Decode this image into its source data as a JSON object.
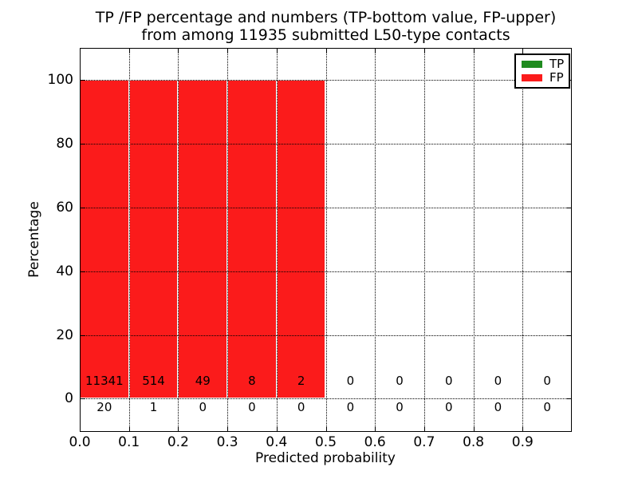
{
  "figure": {
    "title_line1": "TP /FP percentage and numbers (TP-bottom value, FP-upper)",
    "title_line2": "from among 11935 submitted L50-type contacts",
    "xlabel": "Predicted probability",
    "ylabel": "Percentage",
    "background": "#ffffff"
  },
  "legend": {
    "position": "upper right",
    "items": [
      {
        "label": "TP",
        "color": "#1f8b1f"
      },
      {
        "label": "FP",
        "color": "#fb1b1b"
      }
    ]
  },
  "chart_data": {
    "type": "bar",
    "stacked": true,
    "title": "TP /FP percentage and numbers (TP-bottom value, FP-upper) from among 11935 submitted L50-type contacts",
    "xlabel": "Predicted probability",
    "ylabel": "Percentage",
    "xlim": [
      0.0,
      1.0
    ],
    "ylim": [
      -10,
      110
    ],
    "grid": "dotted",
    "bin_width": 0.1,
    "x_bins": [
      0.0,
      0.1,
      0.2,
      0.3,
      0.4,
      0.5,
      0.6,
      0.7,
      0.8,
      0.9
    ],
    "xtick_labels": [
      "0.0",
      "0.1",
      "0.2",
      "0.3",
      "0.4",
      "0.5",
      "0.6",
      "0.7",
      "0.8",
      "0.9"
    ],
    "ytick_values": [
      0,
      20,
      40,
      60,
      80,
      100
    ],
    "ytick_labels": [
      "0",
      "20",
      "40",
      "60",
      "80",
      "100"
    ],
    "series": [
      {
        "name": "TP",
        "color": "#1f8b1f",
        "count_row": "bottom",
        "percent": [
          0,
          0,
          0,
          0,
          0,
          0,
          0,
          0,
          0,
          0
        ],
        "counts": [
          20,
          1,
          0,
          0,
          0,
          0,
          0,
          0,
          0,
          0
        ]
      },
      {
        "name": "FP",
        "color": "#fb1b1b",
        "count_row": "upper",
        "percent": [
          100,
          100,
          100,
          100,
          100,
          0,
          0,
          0,
          0,
          0
        ],
        "counts": [
          11341,
          514,
          49,
          8,
          2,
          0,
          0,
          0,
          0,
          0
        ]
      }
    ]
  }
}
